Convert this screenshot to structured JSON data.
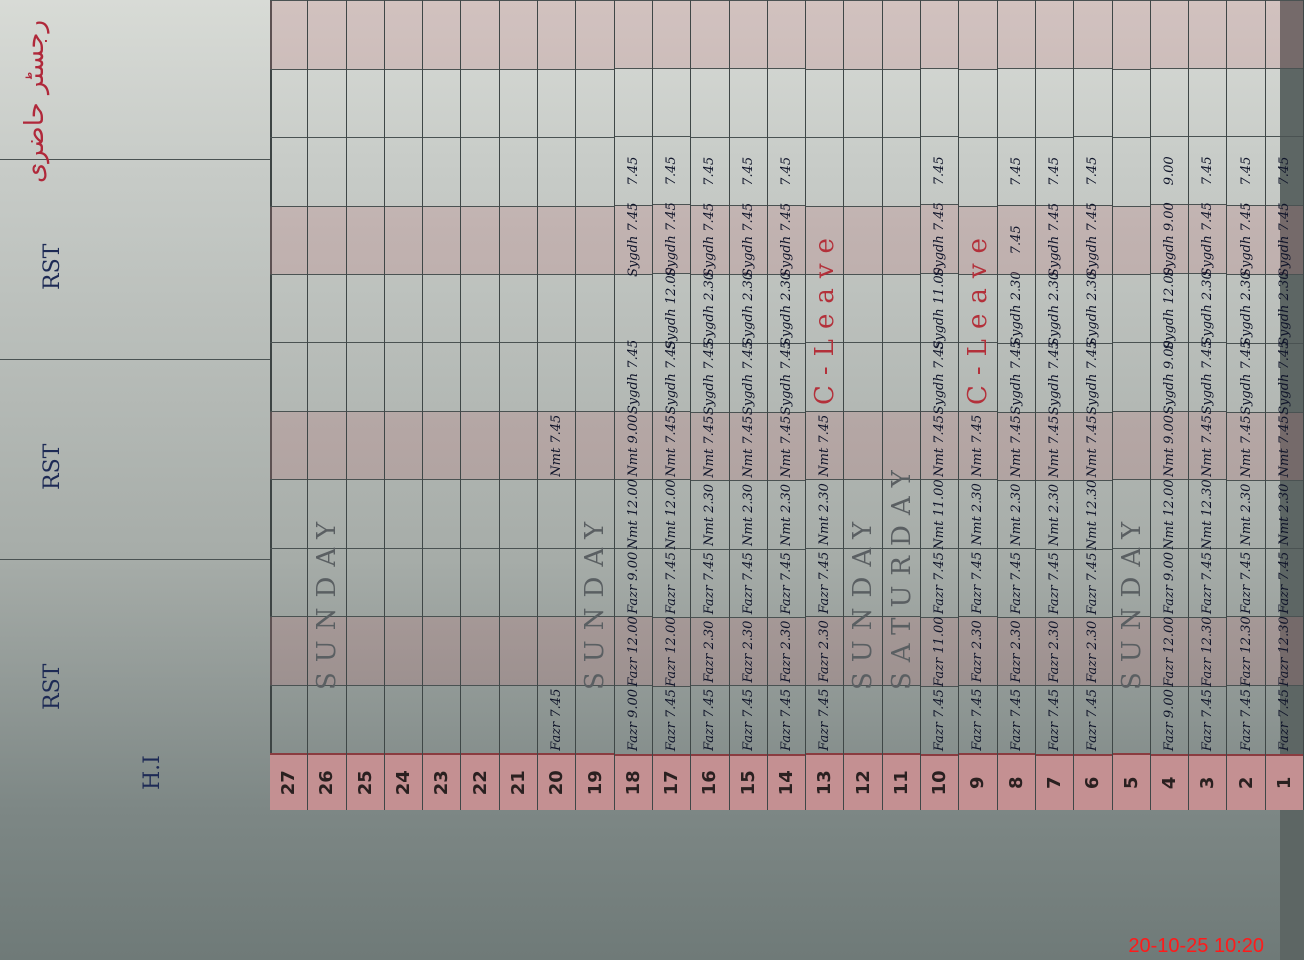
{
  "header": {
    "title_urdu": "رجسٹر حاضری",
    "names": [
      "RST",
      "RST",
      "RST",
      "H.I"
    ]
  },
  "days": [
    {
      "day": "1",
      "entries": [
        "Fazr 7.45",
        "Fazr 12.30",
        "Fazr 7.45",
        "Nmt 2.30",
        "Nmt 7.45",
        "Sygdh 7.45",
        "Sygdh 2.30",
        "Sygdh 7.45",
        "7.45"
      ]
    },
    {
      "day": "2",
      "entries": [
        "Fazr 7.45",
        "Fazr 12.30",
        "Fazr 7.45",
        "Nmt 2.30",
        "Nmt 7.45",
        "Sygdh 7.45",
        "Sygdh 2.30",
        "Sygdh 7.45",
        "7.45"
      ]
    },
    {
      "day": "3",
      "entries": [
        "Fazr 7.45",
        "Fazr 12.30",
        "Fazr 7.45",
        "Nmt 12.30",
        "Nmt 7.45",
        "Sygdh 7.45",
        "Sygdh 2.30",
        "Sygdh 7.45",
        "7.45"
      ]
    },
    {
      "day": "4",
      "entries": [
        "Fazr 9.00",
        "Fazr 12.00",
        "Fazr 9.00",
        "Nmt 12.00",
        "Nmt 9.00",
        "Sygdh 9.00",
        "Sygdh 12.00",
        "Sygdh 9.00",
        "9.00"
      ]
    },
    {
      "day": "5",
      "note": "SUNDAY"
    },
    {
      "day": "6",
      "entries": [
        "Fazr 7.45",
        "Fazr 2.30",
        "Fazr 7.45",
        "Nmt 12.30",
        "Nmt 7.45",
        "Sygdh 7.45",
        "Sygdh 2.30",
        "Sygdh 7.45",
        "7.45"
      ]
    },
    {
      "day": "7",
      "entries": [
        "Fazr 7.45",
        "Fazr 2.30",
        "Fazr 7.45",
        "Nmt 2.30",
        "Nmt 7.45",
        "Sygdh 7.45",
        "Sygdh 2.30",
        "Sygdh 7.45",
        "7.45"
      ]
    },
    {
      "day": "8",
      "entries": [
        "Fazr 7.45",
        "Fazr 2.30",
        "Fazr 7.45",
        "Nmt 2.30",
        "Nmt 7.45",
        "Sygdh 7.45",
        "Sygdh 2.30",
        "7.45",
        "7.45"
      ]
    },
    {
      "day": "9",
      "entries": [
        "Fazr 7.45",
        "Fazr 2.30",
        "Fazr 7.45",
        "Nmt 2.30",
        "Nmt 7.45"
      ],
      "note": "C-Leave"
    },
    {
      "day": "10",
      "entries": [
        "Fazr 7.45",
        "Fazr 11.00",
        "Fazr 7.45",
        "Nmt 11.00",
        "Nmt 7.45",
        "Sygdh 7.45",
        "Sygdh 11.00",
        "Sygdh 7.45",
        "7.45"
      ]
    },
    {
      "day": "11",
      "note": "SATURDAY"
    },
    {
      "day": "12",
      "note": "SUNDAY"
    },
    {
      "day": "13",
      "entries": [
        "Fazr 7.45",
        "Fazr 2.30",
        "Fazr 7.45",
        "Nmt 2.30",
        "Nmt 7.45"
      ],
      "note": "C-Leave"
    },
    {
      "day": "14",
      "entries": [
        "Fazr 7.45",
        "Fazr 2.30",
        "Fazr 7.45",
        "Nmt 2.30",
        "Nmt 7.45",
        "Sygdh 7.45",
        "Sygdh 2.30",
        "Sygdh 7.45",
        "7.45"
      ]
    },
    {
      "day": "15",
      "entries": [
        "Fazr 7.45",
        "Fazr 2.30",
        "Fazr 7.45",
        "Nmt 2.30",
        "Nmt 7.45",
        "Sygdh 7.45",
        "Sygdh 2.30",
        "Sygdh 7.45",
        "7.45"
      ]
    },
    {
      "day": "16",
      "entries": [
        "Fazr 7.45",
        "Fazr 2.30",
        "Fazr 7.45",
        "Nmt 2.30",
        "Nmt 7.45",
        "Sygdh 7.45",
        "Sygdh 2.30",
        "Sygdh 7.45",
        "7.45"
      ]
    },
    {
      "day": "17",
      "entries": [
        "Fazr 7.45",
        "Fazr 12.00",
        "Fazr 7.45",
        "Nmt 12.00",
        "Nmt 7.45",
        "Sygdh 7.45",
        "Sygdh 12.00",
        "Sygdh 7.45",
        "7.45"
      ]
    },
    {
      "day": "18",
      "entries": [
        "Fazr 9.00",
        "Fazr 12.00",
        "Fazr 9.00",
        "Nmt 12.00",
        "Nmt 9.00",
        "Sygdh 7.45",
        "",
        "Sygdh 7.45",
        "7.45"
      ]
    },
    {
      "day": "19",
      "note": "SUNDAY"
    },
    {
      "day": "20",
      "entries": [
        "Fazr 7.45",
        "",
        "",
        "",
        "Nmt 7.45",
        "",
        "",
        "",
        ""
      ]
    },
    {
      "day": "21"
    },
    {
      "day": "22"
    },
    {
      "day": "23"
    },
    {
      "day": "24"
    },
    {
      "day": "25"
    },
    {
      "day": "26",
      "note": "SUNDAY"
    },
    {
      "day": "27"
    }
  ],
  "timestamp": "20-10-25  10:20",
  "colors": {
    "margin_pink": "#c49092",
    "ink": "#10152a",
    "red_ink": "#b3303a",
    "stamp": "#ff1a1a"
  }
}
